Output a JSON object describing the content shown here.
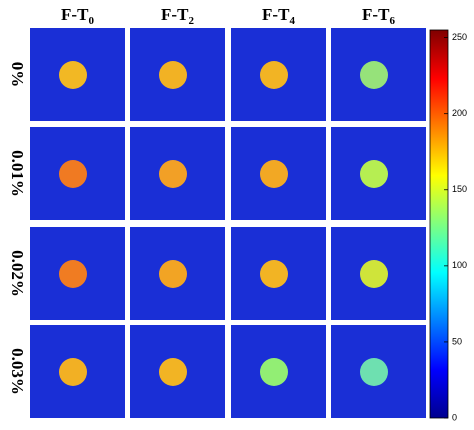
{
  "columns": [
    {
      "main": "F-T",
      "sub": "0"
    },
    {
      "main": "F-T",
      "sub": "2"
    },
    {
      "main": "F-T",
      "sub": "4"
    },
    {
      "main": "F-T",
      "sub": "6"
    }
  ],
  "rows": [
    "0%",
    "0.01%",
    "0.02%",
    "0.03%"
  ],
  "background_color": "#1a2fd6",
  "spot_colors": [
    [
      "#f2b824",
      "#f2b224",
      "#f2b424",
      "#96e27a"
    ],
    [
      "#f07a22",
      "#f2a026",
      "#f2a824",
      "#b6ee52"
    ],
    [
      "#f07c22",
      "#f2a424",
      "#f2b424",
      "#cfe43a"
    ],
    [
      "#f2b024",
      "#f2b424",
      "#92ee74",
      "#6ee0b0"
    ]
  ],
  "colorbar": {
    "lim": [
      0,
      255
    ],
    "ticks": [
      0,
      50,
      100,
      150,
      200,
      250
    ]
  }
}
